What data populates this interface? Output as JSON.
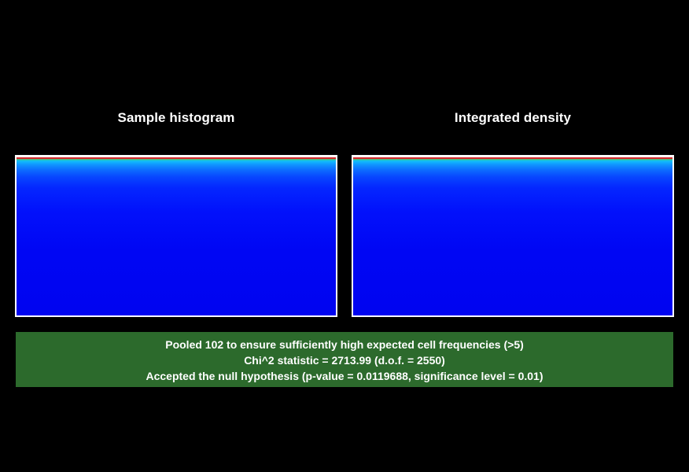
{
  "panels": {
    "left_title": "Sample histogram",
    "right_title": "Integrated density"
  },
  "colormap": {
    "top_band": "#d3262c",
    "high": "#10b2ff",
    "base": "#0004f0"
  },
  "stats": {
    "line1": "Pooled 102 to ensure sufficiently high expected cell frequencies (>5)",
    "line2": "Chi^2 statistic = 2713.99 (d.o.f. = 2550)",
    "line3": "Accepted the null hypothesis (p-value = 0.0119688, significance level = 0.01)"
  }
}
